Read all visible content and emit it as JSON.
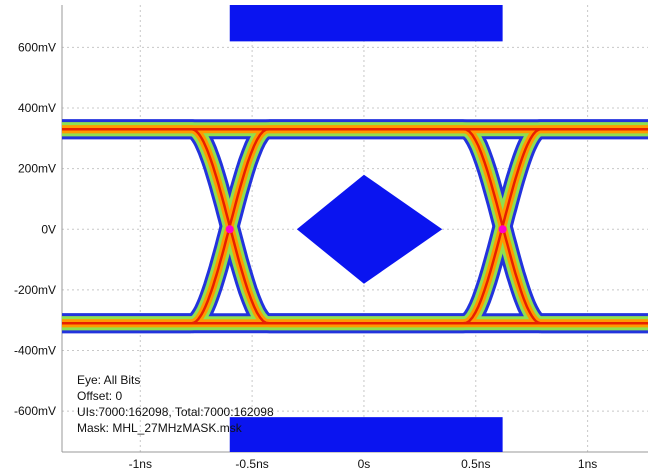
{
  "chart_data": {
    "type": "eye-diagram",
    "x_unit": "ns",
    "y_unit": "mV",
    "xlim": [
      -1.35,
      1.27
    ],
    "ylim": [
      -735,
      740
    ],
    "x_ticks": [
      {
        "value": -1.0,
        "label": "-1ns"
      },
      {
        "value": -0.5,
        "label": "-0.5ns"
      },
      {
        "value": 0.0,
        "label": "0s"
      },
      {
        "value": 0.5,
        "label": "0.5ns"
      },
      {
        "value": 1.0,
        "label": "1ns"
      }
    ],
    "y_ticks": [
      {
        "value": 600,
        "label": "600mV"
      },
      {
        "value": 400,
        "label": "400mV"
      },
      {
        "value": 200,
        "label": "200mV"
      },
      {
        "value": 0,
        "label": "0V"
      },
      {
        "value": -200,
        "label": "-200mV"
      },
      {
        "value": -400,
        "label": "-400mV"
      },
      {
        "value": -600,
        "label": "-600mV"
      }
    ],
    "grid": true,
    "eye": {
      "high_level_mV": 330,
      "low_level_mV": -310,
      "high_band_mV": [
        300,
        370
      ],
      "low_band_mV": [
        -345,
        -285
      ],
      "crossings_ns": [
        -0.6,
        0.62
      ],
      "crossing_level_mV": 0,
      "colors": {
        "outer": "#2233dd",
        "mid": "#8fe050",
        "hot": "#ff9a00",
        "core": "#e82000",
        "crossing": "#ff00cc"
      }
    },
    "mask": {
      "color": "#0a14f0",
      "top_rect": {
        "x": [
          -0.6,
          0.62
        ],
        "y": [
          620,
          740
        ]
      },
      "bottom_rect": {
        "x": [
          -0.6,
          0.62
        ],
        "y": [
          -735,
          -620
        ]
      },
      "diamond": {
        "x": [
          -0.3,
          0.0,
          0.35,
          0.0
        ],
        "y": [
          0,
          180,
          0,
          -180
        ]
      }
    },
    "annotations": {
      "eye": "Eye: All Bits",
      "offset": "Offset: 0",
      "uis": "UIs:7000:162098, Total:7000:162098",
      "mask": "Mask: MHL_27MHzMASK.msk"
    }
  }
}
